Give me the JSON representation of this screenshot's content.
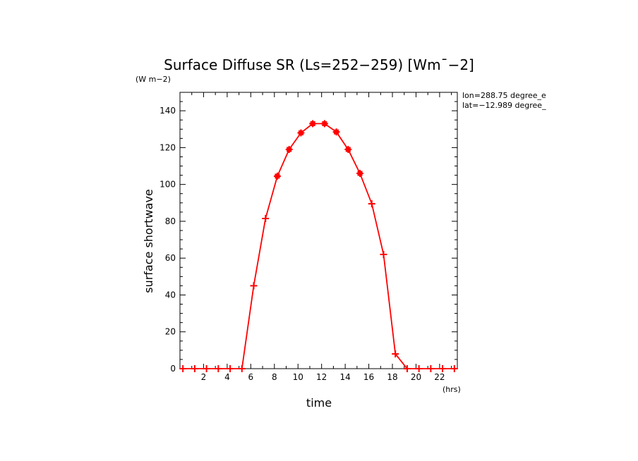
{
  "chart_data": {
    "type": "line",
    "title": "Surface Diffuse SR (Ls=252-259) [Wm^-2]",
    "title_display": "Surface Diffuse SR (Ls=252−259) [Wm¯−2]",
    "y_unit": "(W m−2)",
    "x_unit": "(hrs)",
    "xlabel": "time",
    "ylabel": "surface shortwave",
    "info_lines": [
      "lon=288.75 degree_e",
      "lat=−12.989 degree_"
    ],
    "xlim": [
      0,
      23.5
    ],
    "ylim": [
      0,
      150
    ],
    "x_ticks": [
      2,
      4,
      6,
      8,
      10,
      12,
      14,
      16,
      18,
      20,
      22
    ],
    "x_tick_labels": [
      "2",
      "4",
      "6",
      "8",
      "10",
      "12",
      "14",
      "16",
      "18",
      "20",
      "22"
    ],
    "y_ticks": [
      0,
      20,
      40,
      60,
      80,
      100,
      120,
      140
    ],
    "y_tick_labels": [
      "0",
      "20",
      "40",
      "60",
      "80",
      "100",
      "120",
      "140"
    ],
    "grid": false,
    "line_color": "#ff0000",
    "series": [
      {
        "x": [
          0.25,
          1.25,
          2.25,
          3.25,
          4.25,
          5.25,
          6.25,
          7.25,
          8.25,
          9.25,
          10.25,
          11.25,
          12.25,
          13.25,
          14.25,
          15.25,
          16.25,
          17.25,
          18.25,
          19.25,
          20.25,
          21.25,
          22.25,
          23.25
        ],
        "values": [
          0,
          0,
          0,
          0,
          0,
          0,
          45,
          81.5,
          104.5,
          119,
          128,
          133,
          133,
          128.5,
          119,
          106,
          89.5,
          62,
          8,
          0,
          0,
          0,
          0,
          0
        ]
      }
    ]
  }
}
